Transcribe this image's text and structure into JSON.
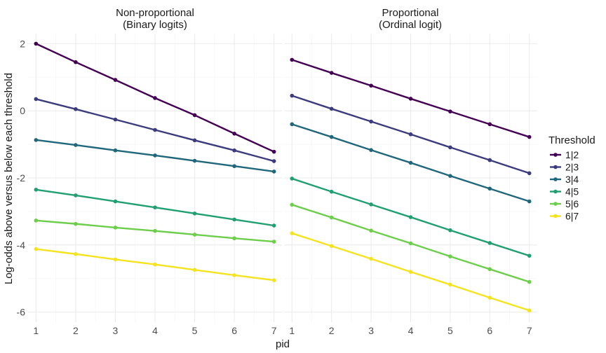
{
  "chart_data": {
    "type": "line",
    "ylabel": "Log-odds above versus below each threshold",
    "xlabel": "pid",
    "x": [
      1,
      2,
      3,
      4,
      5,
      6,
      7
    ],
    "xlim": [
      0.8,
      7.2
    ],
    "ylim": [
      -6.3,
      2.3
    ],
    "yticks": [
      -6,
      -4,
      -2,
      0,
      2
    ],
    "grid": true,
    "legend": {
      "title": "Threshold",
      "placement": "right",
      "entries": [
        "1|2",
        "2|3",
        "3|4",
        "4|5",
        "5|6",
        "6|7"
      ]
    },
    "colors": {
      "1|2": "#440154",
      "2|3": "#3b3b7e",
      "3|4": "#21677c",
      "4|5": "#20a070",
      "5|6": "#6cce4a",
      "6|7": "#f4e31f"
    },
    "facets": [
      {
        "title_line1": "Non-proportional",
        "title_line2": "(Binary logits)",
        "series": [
          {
            "name": "1|2",
            "values": [
              2.0,
              1.45,
              0.92,
              0.38,
              -0.13,
              -0.68,
              -1.22
            ]
          },
          {
            "name": "2|3",
            "values": [
              0.35,
              0.05,
              -0.26,
              -0.57,
              -0.88,
              -1.18,
              -1.5
            ]
          },
          {
            "name": "3|4",
            "values": [
              -0.87,
              -1.02,
              -1.18,
              -1.33,
              -1.49,
              -1.65,
              -1.81
            ]
          },
          {
            "name": "4|5",
            "values": [
              -2.35,
              -2.52,
              -2.7,
              -2.88,
              -3.06,
              -3.24,
              -3.42
            ]
          },
          {
            "name": "5|6",
            "values": [
              -3.27,
              -3.37,
              -3.48,
              -3.58,
              -3.69,
              -3.8,
              -3.9
            ]
          },
          {
            "name": "6|7",
            "values": [
              -4.12,
              -4.27,
              -4.43,
              -4.58,
              -4.74,
              -4.9,
              -5.05
            ]
          }
        ]
      },
      {
        "title_line1": "Proportional",
        "title_line2": "(Ordinal logit)",
        "series": [
          {
            "name": "1|2",
            "values": [
              1.52,
              1.13,
              0.75,
              0.36,
              -0.02,
              -0.4,
              -0.78
            ]
          },
          {
            "name": "2|3",
            "values": [
              0.45,
              0.06,
              -0.32,
              -0.7,
              -1.09,
              -1.47,
              -1.86
            ]
          },
          {
            "name": "3|4",
            "values": [
              -0.4,
              -0.78,
              -1.17,
              -1.55,
              -1.94,
              -2.32,
              -2.7
            ]
          },
          {
            "name": "4|5",
            "values": [
              -2.02,
              -2.41,
              -2.79,
              -3.17,
              -3.56,
              -3.94,
              -4.32
            ]
          },
          {
            "name": "5|6",
            "values": [
              -2.8,
              -3.18,
              -3.57,
              -3.95,
              -4.34,
              -4.72,
              -5.1
            ]
          },
          {
            "name": "6|7",
            "values": [
              -3.65,
              -4.03,
              -4.41,
              -4.8,
              -5.18,
              -5.57,
              -5.95
            ]
          }
        ]
      }
    ]
  }
}
